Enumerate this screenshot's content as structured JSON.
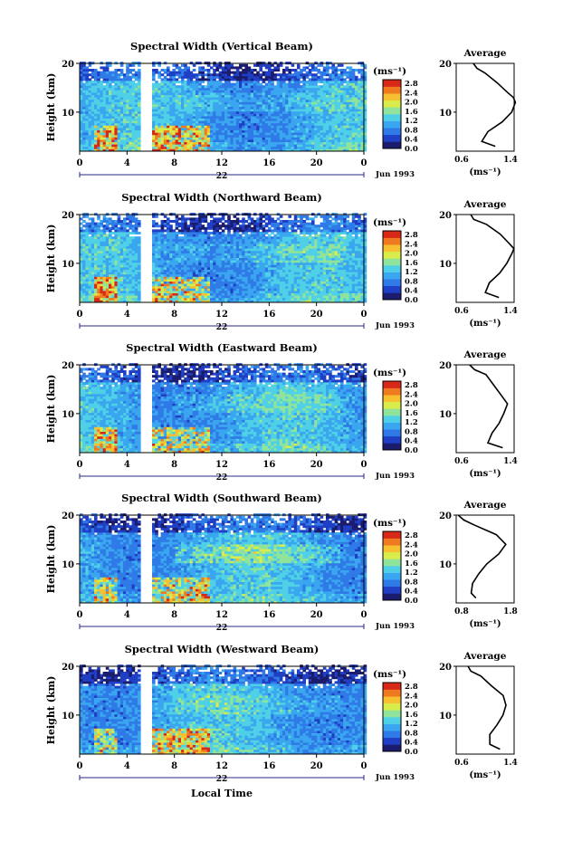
{
  "figure": {
    "x_axis_title": "Local Time",
    "y_axis_title": "Height (km)",
    "colorbar_unit": "(ms⁻¹)",
    "colorbar_ticks": [
      "2.8",
      "2.4",
      "2.0",
      "1.6",
      "1.2",
      "0.8",
      "0.4",
      "0.0"
    ],
    "avg_title": "Average",
    "avg_unit": "(ms⁻¹)",
    "date_label": "Jun 1993",
    "day_label": "22",
    "height_ticks": [
      "20",
      "10"
    ],
    "time_ticks": [
      "0",
      "4",
      "8",
      "12",
      "16",
      "20",
      "0"
    ]
  },
  "colors": {
    "scale": [
      "#1c1c6e",
      "#1f3fc4",
      "#2f7ae6",
      "#3aa6ef",
      "#4fd0e6",
      "#8fe39a",
      "#d8ec4c",
      "#f6c030",
      "#f07a20",
      "#d82818"
    ],
    "gap": "#ffffff",
    "line": "#000000"
  },
  "chart_data": [
    {
      "type": "heatmap",
      "title": "Spectral Width (Vertical Beam)",
      "xlabel": "Local Time",
      "ylabel": "Height (km)",
      "xlim": [
        0,
        24
      ],
      "ylim": [
        2,
        20
      ],
      "zlim": [
        0.0,
        2.8
      ],
      "data_gap_hours": [
        5.0,
        5.9
      ],
      "average_profile": {
        "xlim": [
          0.6,
          1.4
        ],
        "x_tick_labels": [
          "0.6",
          "1.4"
        ],
        "height": [
          3,
          4,
          6,
          8,
          10,
          12,
          13,
          14,
          16,
          18,
          19,
          20
        ],
        "value": [
          1.15,
          0.95,
          1.05,
          1.25,
          1.35,
          1.4,
          1.4,
          1.3,
          1.15,
          1.0,
          0.9,
          0.85
        ]
      }
    },
    {
      "type": "heatmap",
      "title": "Spectral Width (Northward Beam)",
      "xlabel": "Local Time",
      "ylabel": "Height (km)",
      "xlim": [
        0,
        24
      ],
      "ylim": [
        2,
        20
      ],
      "zlim": [
        0.0,
        2.8
      ],
      "data_gap_hours": [
        5.0,
        5.9
      ],
      "average_profile": {
        "xlim": [
          0.6,
          1.4
        ],
        "x_tick_labels": [
          "0.6",
          "1.4"
        ],
        "height": [
          3,
          4,
          6,
          8,
          10,
          12,
          13,
          14,
          16,
          18,
          19,
          20
        ],
        "value": [
          1.2,
          1.0,
          1.05,
          1.2,
          1.3,
          1.35,
          1.4,
          1.35,
          1.2,
          1.0,
          0.85,
          0.8
        ]
      }
    },
    {
      "type": "heatmap",
      "title": "Spectral Width (Eastward Beam)",
      "xlabel": "Local Time",
      "ylabel": "Height (km)",
      "xlim": [
        0,
        24
      ],
      "ylim": [
        2,
        20
      ],
      "zlim": [
        0.0,
        2.8
      ],
      "data_gap_hours": [
        5.0,
        5.9
      ],
      "average_profile": {
        "xlim": [
          0.6,
          1.4
        ],
        "x_tick_labels": [
          "0.6",
          "1.4"
        ],
        "height": [
          3,
          4,
          6,
          8,
          10,
          12,
          14,
          16,
          18,
          19,
          20
        ],
        "value": [
          1.25,
          1.05,
          1.1,
          1.2,
          1.25,
          1.3,
          1.2,
          1.1,
          1.0,
          0.85,
          0.8
        ]
      }
    },
    {
      "type": "heatmap",
      "title": "Spectral Width (Southward Beam)",
      "xlabel": "Local Time",
      "ylabel": "Height (km)",
      "xlim": [
        0,
        24
      ],
      "ylim": [
        2,
        20
      ],
      "zlim": [
        0.0,
        2.8
      ],
      "data_gap_hours": [
        5.0,
        5.9
      ],
      "average_profile": {
        "xlim": [
          0.8,
          1.8
        ],
        "x_tick_labels": [
          "0.8",
          "1.8"
        ],
        "height": [
          3,
          4,
          6,
          8,
          10,
          12,
          14,
          16,
          18,
          19,
          20
        ],
        "value": [
          1.15,
          1.05,
          1.1,
          1.2,
          1.35,
          1.55,
          1.65,
          1.5,
          1.1,
          0.95,
          0.85
        ]
      }
    },
    {
      "type": "heatmap",
      "title": "Spectral Width (Westward Beam)",
      "xlabel": "Local Time",
      "ylabel": "Height (km)",
      "xlim": [
        0,
        24
      ],
      "ylim": [
        2,
        20
      ],
      "zlim": [
        0.0,
        2.8
      ],
      "data_gap_hours": [
        5.0,
        5.9
      ],
      "average_profile": {
        "xlim": [
          0.6,
          1.4
        ],
        "x_tick_labels": [
          "0.6",
          "1.4"
        ],
        "height": [
          3,
          4,
          6,
          8,
          10,
          12,
          14,
          16,
          18,
          19,
          20
        ],
        "value": [
          1.2,
          1.05,
          1.05,
          1.15,
          1.25,
          1.3,
          1.25,
          1.1,
          0.95,
          0.8,
          0.75
        ]
      }
    }
  ]
}
